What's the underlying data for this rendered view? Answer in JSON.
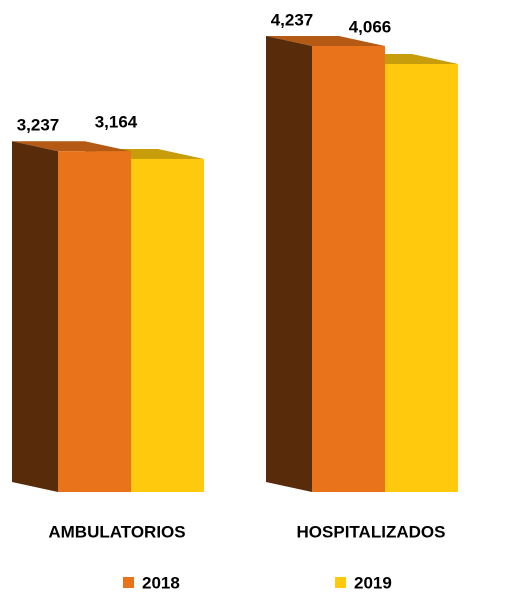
{
  "chart_data": {
    "type": "bar3d",
    "categories": [
      "AMBULATORIOS",
      "HOSPITALIZADOS"
    ],
    "series": [
      {
        "name": "2018",
        "color": "#e8731a",
        "values": [
          3237,
          4237
        ],
        "value_labels": [
          "3,237",
          "4,237"
        ]
      },
      {
        "name": "2019",
        "color": "#ffc90e",
        "values": [
          3164,
          4066
        ],
        "value_labels": [
          "3,164",
          "4,066"
        ]
      }
    ]
  }
}
